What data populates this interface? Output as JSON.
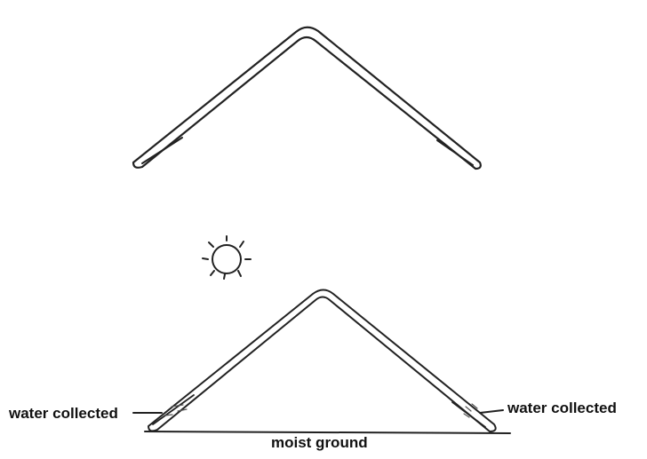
{
  "labels": {
    "water_left": "water collected",
    "water_right": "water collected",
    "ground": "moist ground"
  },
  "icons": [
    "sun-icon"
  ],
  "colors": {
    "stroke": "#222222",
    "background": "#ffffff"
  }
}
